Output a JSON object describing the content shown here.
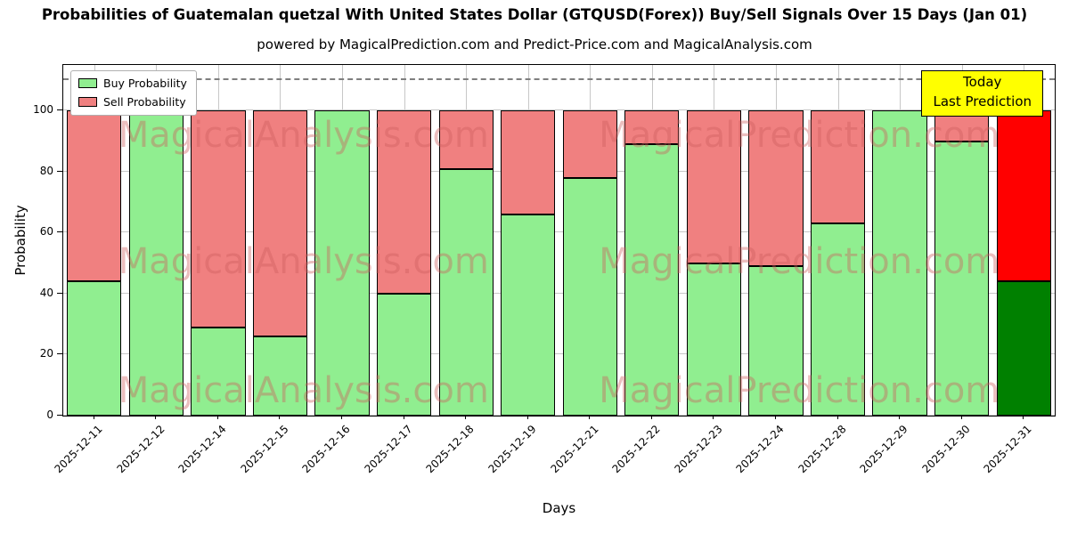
{
  "title": "Probabilities of Guatemalan quetzal With United States Dollar (GTQUSD(Forex)) Buy/Sell Signals Over 15 Days (Jan 01)",
  "subtitle": "powered by MagicalPrediction.com and Predict-Price.com and MagicalAnalysis.com",
  "annotation": {
    "line1": "Today",
    "line2": "Last Prediction",
    "bg_color": "#ffff00"
  },
  "watermarks": [
    "MagicalAnalysis.com",
    "MagicalPrediction.com"
  ],
  "chart_data": {
    "type": "bar",
    "stacked": true,
    "title": "Probabilities of Guatemalan quetzal With United States Dollar (GTQUSD(Forex)) Buy/Sell Signals Over 15 Days (Jan 01)",
    "xlabel": "Days",
    "ylabel": "Probability",
    "ylim": [
      0,
      115
    ],
    "yticks": [
      0,
      20,
      40,
      60,
      80,
      100
    ],
    "grid": true,
    "legend_position": "upper left",
    "dashed_line_y": 110,
    "categories": [
      "2025-12-11",
      "2025-12-12",
      "2025-12-14",
      "2025-12-15",
      "2025-12-16",
      "2025-12-17",
      "2025-12-18",
      "2025-12-19",
      "2025-12-21",
      "2025-12-22",
      "2025-12-23",
      "2025-12-24",
      "2025-12-28",
      "2025-12-29",
      "2025-12-30",
      "2025-12-31"
    ],
    "series": [
      {
        "name": "Buy Probability",
        "color": "#90ee90",
        "today_color": "#008000",
        "values": [
          44,
          100,
          29,
          26,
          100,
          40,
          81,
          66,
          78,
          89,
          50,
          49,
          63,
          100,
          90,
          44
        ]
      },
      {
        "name": "Sell Probability",
        "color": "#f08080",
        "today_color": "#ff0000",
        "values": [
          56,
          0,
          71,
          74,
          0,
          60,
          19,
          34,
          22,
          11,
          50,
          51,
          37,
          0,
          10,
          56
        ]
      }
    ],
    "today_index": 15
  }
}
